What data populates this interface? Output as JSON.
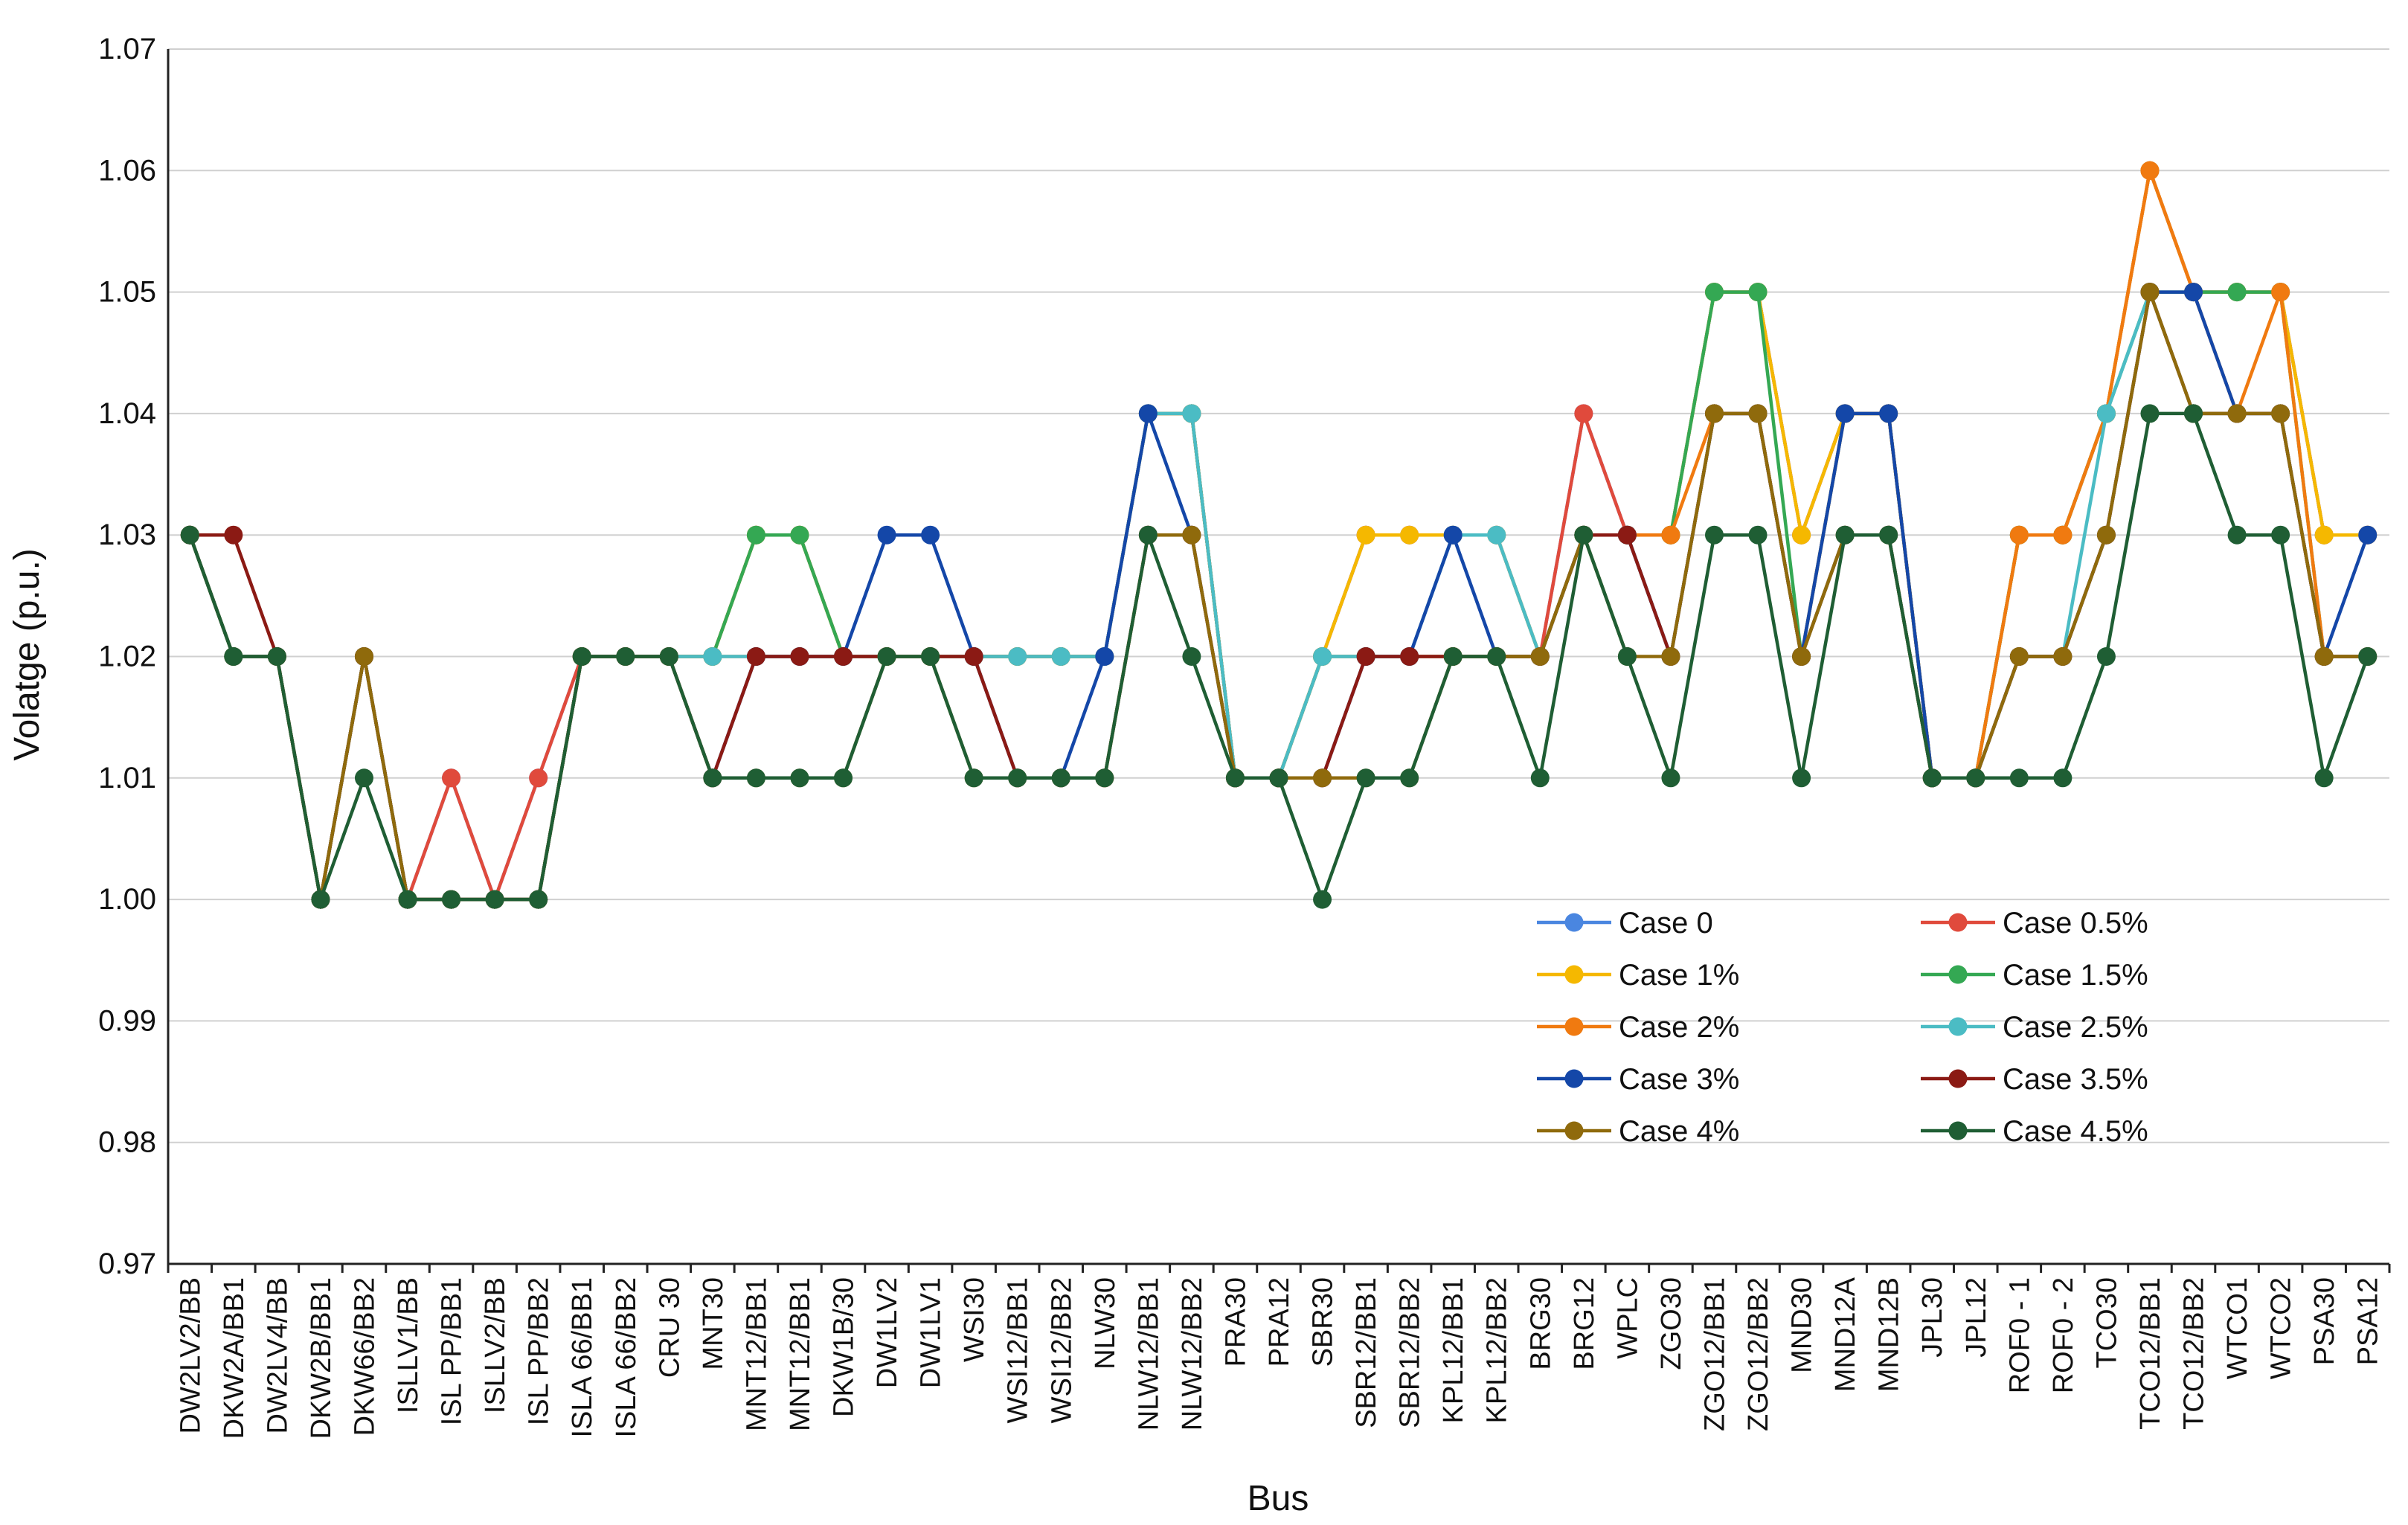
{
  "chart_data": {
    "type": "line",
    "title": "",
    "xlabel": "Bus",
    "ylabel": "Volatge (p.u.)",
    "ylim": [
      0.97,
      1.07
    ],
    "yticks": [
      "0.97",
      "0.98",
      "0.99",
      "1.00",
      "1.01",
      "1.02",
      "1.03",
      "1.04",
      "1.05",
      "1.06",
      "1.07"
    ],
    "legend_position": "lower-right inside plot",
    "categories": [
      "DW2LV2/BB",
      "DKW2A/BB1",
      "DW2LV4/BB",
      "DKW2B/BB1",
      "DKW66/BB2",
      "ISLLV1/BB",
      "ISL PP/BB1",
      "ISLLV2/BB",
      "ISL PP/BB2",
      "ISLA 66/BB1",
      "ISLA 66/BB2",
      "CRU 30",
      "MNT30",
      "MNT12/BB1",
      "MNT12/BB1",
      "DKW1B/30",
      "DW1LV2",
      "DW1LV1",
      "WSI30",
      "WSI12/BB1",
      "WSI12/BB2",
      "NLW30",
      "NLW12/BB1",
      "NLW12/BB2",
      "PRA30",
      "PRA12",
      "SBR30",
      "SBR12/BB1",
      "SBR12/BB2",
      "KPL12/BB1",
      "KPL12/BB2",
      "BRG30",
      "BRG12",
      "WPLC",
      "ZGO30",
      "ZGO12/BB1",
      "ZGO12/BB2",
      "MND30",
      "MND12A",
      "MND12B",
      "JPL30",
      "JPL12",
      "ROF0 - 1",
      "ROF0 - 2",
      "TCO30",
      "TCO12/BB1",
      "TCO12/BB2",
      "WTCO1",
      "WTCO2",
      "PSA30",
      "PSA12"
    ],
    "series": [
      {
        "name": "Case 0",
        "color": "#4a86e0",
        "values": [
          1.03,
          1.02,
          1.02,
          1.0,
          1.02,
          1.0,
          1.01,
          1.0,
          1.01,
          1.02,
          1.02,
          1.02,
          1.02,
          1.03,
          1.03,
          1.02,
          1.02,
          1.02,
          1.02,
          1.02,
          1.02,
          1.02,
          1.04,
          1.04,
          1.01,
          1.01,
          1.02,
          1.03,
          1.03,
          1.03,
          1.03,
          1.02,
          1.04,
          1.03,
          1.03,
          1.05,
          1.05,
          1.03,
          1.04,
          1.04,
          1.01,
          1.01,
          1.03,
          1.03,
          1.04,
          1.06,
          1.05,
          1.05,
          1.05,
          1.03,
          1.03
        ]
      },
      {
        "name": "Case 0.5%",
        "color": "#e04a3c",
        "values": [
          1.03,
          1.02,
          1.02,
          1.0,
          1.02,
          1.0,
          1.01,
          1.0,
          1.01,
          1.02,
          1.02,
          1.02,
          1.02,
          1.03,
          1.03,
          1.02,
          1.02,
          1.02,
          1.02,
          1.02,
          1.02,
          1.02,
          1.04,
          1.04,
          1.01,
          1.01,
          1.02,
          1.03,
          1.03,
          1.03,
          1.03,
          1.02,
          1.04,
          1.03,
          1.03,
          1.05,
          1.05,
          1.03,
          1.04,
          1.04,
          1.01,
          1.01,
          1.03,
          1.03,
          1.04,
          1.06,
          1.05,
          1.05,
          1.05,
          1.03,
          1.03
        ]
      },
      {
        "name": "Case 1%",
        "color": "#f5b800",
        "values": [
          1.03,
          1.02,
          1.02,
          1.0,
          1.02,
          1.0,
          1.0,
          1.0,
          1.0,
          1.02,
          1.02,
          1.02,
          1.02,
          1.03,
          1.03,
          1.02,
          1.02,
          1.02,
          1.02,
          1.02,
          1.02,
          1.02,
          1.04,
          1.04,
          1.01,
          1.01,
          1.02,
          1.03,
          1.03,
          1.03,
          1.03,
          1.02,
          1.03,
          1.03,
          1.03,
          1.05,
          1.05,
          1.03,
          1.04,
          1.04,
          1.01,
          1.01,
          1.03,
          1.03,
          1.04,
          1.06,
          1.05,
          1.05,
          1.05,
          1.03,
          1.03
        ]
      },
      {
        "name": "Case 1.5%",
        "color": "#34a853",
        "values": [
          1.03,
          1.02,
          1.02,
          1.0,
          1.02,
          1.0,
          1.0,
          1.0,
          1.0,
          1.02,
          1.02,
          1.02,
          1.02,
          1.03,
          1.03,
          1.02,
          1.02,
          1.02,
          1.02,
          1.02,
          1.02,
          1.02,
          1.04,
          1.04,
          1.01,
          1.01,
          1.02,
          1.02,
          1.02,
          1.02,
          1.02,
          1.02,
          1.03,
          1.03,
          1.03,
          1.05,
          1.05,
          1.02,
          1.04,
          1.04,
          1.01,
          1.01,
          1.03,
          1.03,
          1.04,
          1.05,
          1.05,
          1.05,
          1.05,
          1.02,
          1.02
        ]
      },
      {
        "name": "Case 2%",
        "color": "#f07a10",
        "values": [
          1.03,
          1.02,
          1.02,
          1.0,
          1.02,
          1.0,
          1.0,
          1.0,
          1.0,
          1.02,
          1.02,
          1.02,
          1.02,
          1.02,
          1.02,
          1.02,
          1.02,
          1.02,
          1.02,
          1.02,
          1.02,
          1.02,
          1.04,
          1.04,
          1.01,
          1.01,
          1.02,
          1.02,
          1.02,
          1.02,
          1.02,
          1.02,
          1.03,
          1.03,
          1.03,
          1.04,
          1.04,
          1.02,
          1.04,
          1.04,
          1.01,
          1.01,
          1.03,
          1.03,
          1.04,
          1.06,
          1.05,
          1.04,
          1.05,
          1.02,
          1.02
        ]
      },
      {
        "name": "Case 2.5%",
        "color": "#4bbcc4",
        "values": [
          1.03,
          1.02,
          1.02,
          1.0,
          1.02,
          1.0,
          1.0,
          1.0,
          1.0,
          1.02,
          1.02,
          1.02,
          1.02,
          1.02,
          1.02,
          1.02,
          1.02,
          1.02,
          1.02,
          1.02,
          1.02,
          1.02,
          1.04,
          1.04,
          1.01,
          1.01,
          1.02,
          1.02,
          1.02,
          1.03,
          1.03,
          1.02,
          1.03,
          1.03,
          1.02,
          1.04,
          1.04,
          1.02,
          1.03,
          1.03,
          1.01,
          1.01,
          1.02,
          1.02,
          1.04,
          1.05,
          1.04,
          1.04,
          1.04,
          1.02,
          1.02
        ]
      },
      {
        "name": "Case 3%",
        "color": "#1447a8",
        "values": [
          1.03,
          1.02,
          1.02,
          1.0,
          1.02,
          1.0,
          1.0,
          1.0,
          1.0,
          1.02,
          1.02,
          1.02,
          1.01,
          1.02,
          1.02,
          1.02,
          1.03,
          1.03,
          1.02,
          1.01,
          1.01,
          1.02,
          1.04,
          1.03,
          1.01,
          1.01,
          1.01,
          1.02,
          1.02,
          1.03,
          1.02,
          1.02,
          1.03,
          1.03,
          1.02,
          1.04,
          1.04,
          1.02,
          1.04,
          1.04,
          1.01,
          1.01,
          1.02,
          1.02,
          1.03,
          1.05,
          1.05,
          1.04,
          1.04,
          1.02,
          1.03
        ]
      },
      {
        "name": "Case 3.5%",
        "color": "#8b1a14",
        "values": [
          1.03,
          1.03,
          1.02,
          1.0,
          1.02,
          1.0,
          1.0,
          1.0,
          1.0,
          1.02,
          1.02,
          1.02,
          1.01,
          1.02,
          1.02,
          1.02,
          1.02,
          1.02,
          1.02,
          1.01,
          1.01,
          1.01,
          1.03,
          1.03,
          1.01,
          1.01,
          1.01,
          1.02,
          1.02,
          1.02,
          1.02,
          1.02,
          1.03,
          1.03,
          1.02,
          1.04,
          1.04,
          1.02,
          1.03,
          1.03,
          1.01,
          1.01,
          1.02,
          1.02,
          1.03,
          1.05,
          1.04,
          1.04,
          1.04,
          1.02,
          1.02
        ]
      },
      {
        "name": "Case 4%",
        "color": "#8f6a0c",
        "values": [
          1.03,
          1.02,
          1.02,
          1.0,
          1.02,
          1.0,
          1.0,
          1.0,
          1.0,
          1.02,
          1.02,
          1.02,
          1.01,
          1.01,
          1.01,
          1.01,
          1.02,
          1.02,
          1.01,
          1.01,
          1.01,
          1.01,
          1.03,
          1.03,
          1.01,
          1.01,
          1.01,
          1.01,
          1.01,
          1.02,
          1.02,
          1.02,
          1.03,
          1.02,
          1.02,
          1.04,
          1.04,
          1.02,
          1.03,
          1.03,
          1.01,
          1.01,
          1.02,
          1.02,
          1.03,
          1.05,
          1.04,
          1.04,
          1.04,
          1.02,
          1.02
        ]
      },
      {
        "name": "Case 4.5%",
        "color": "#1f5e34",
        "values": [
          1.03,
          1.02,
          1.02,
          1.0,
          1.01,
          1.0,
          1.0,
          1.0,
          1.0,
          1.02,
          1.02,
          1.02,
          1.01,
          1.01,
          1.01,
          1.01,
          1.02,
          1.02,
          1.01,
          1.01,
          1.01,
          1.01,
          1.03,
          1.02,
          1.01,
          1.01,
          1.0,
          1.01,
          1.01,
          1.02,
          1.02,
          1.01,
          1.03,
          1.02,
          1.01,
          1.03,
          1.03,
          1.01,
          1.03,
          1.03,
          1.01,
          1.01,
          1.01,
          1.01,
          1.02,
          1.04,
          1.04,
          1.03,
          1.03,
          1.01,
          1.02
        ]
      }
    ]
  }
}
